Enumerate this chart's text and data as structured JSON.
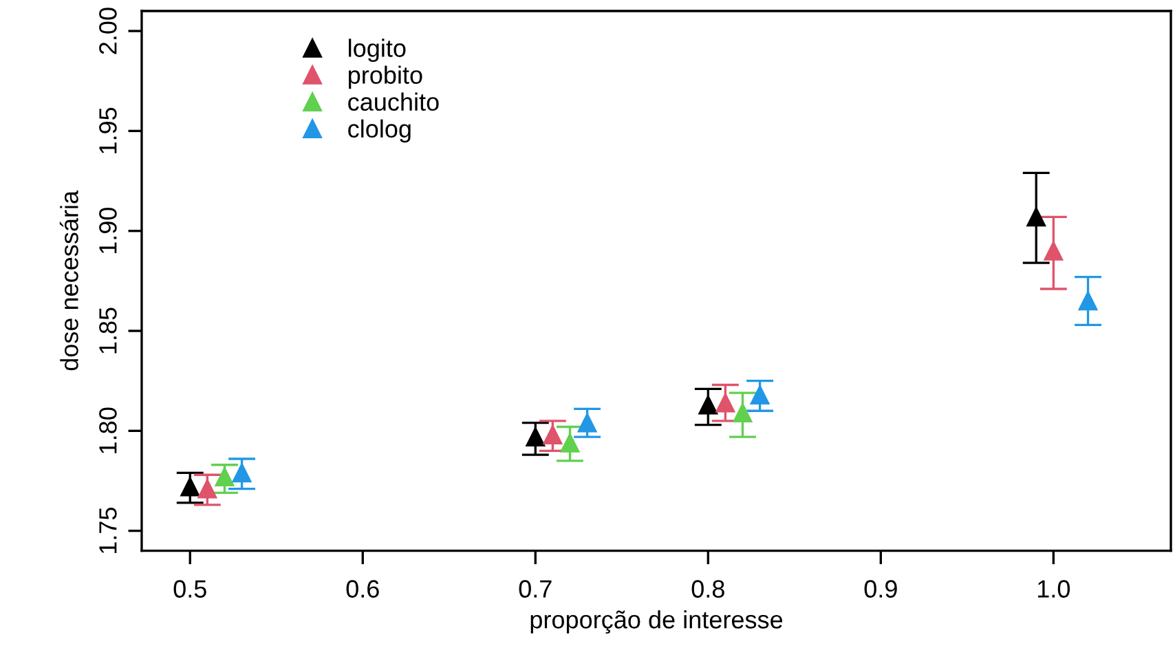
{
  "chart_data": {
    "type": "scatter",
    "xlabel": "proporção de interesse",
    "ylabel": "dose necessária",
    "xlim": [
      0.472,
      1.068
    ],
    "ylim": [
      1.74,
      2.01
    ],
    "xticks": [
      0.5,
      0.6,
      0.7,
      0.8,
      0.9,
      {
        "value": 1.0,
        "label": "1.0"
      }
    ],
    "yticks": [
      {
        "value": 1.75,
        "label": "1.75"
      },
      {
        "value": 1.8,
        "label": "1.80"
      },
      {
        "value": 1.85,
        "label": "1.85"
      },
      {
        "value": 1.9,
        "label": "1.90"
      },
      {
        "value": 1.95,
        "label": "1.95"
      },
      {
        "value": 2.0,
        "label": "2.00"
      }
    ],
    "marker": "triangle",
    "grid": false,
    "legend": "top left",
    "series": [
      {
        "name": "logito",
        "color": "#000000",
        "x": [
          0.5,
          0.7,
          0.8,
          0.99
        ],
        "values": [
          1.772,
          1.797,
          1.813,
          1.907
        ],
        "errors": [
          [
            1.764,
            1.779
          ],
          [
            1.788,
            1.804
          ],
          [
            1.803,
            1.821
          ],
          [
            1.884,
            1.929
          ]
        ]
      },
      {
        "name": "probito",
        "color": "#df536b",
        "x": [
          0.51,
          0.71,
          0.81,
          1.0
        ],
        "values": [
          1.771,
          1.798,
          1.814,
          1.89
        ],
        "errors": [
          [
            1.763,
            1.778
          ],
          [
            1.79,
            1.805
          ],
          [
            1.805,
            1.823
          ],
          [
            1.871,
            1.907
          ]
        ]
      },
      {
        "name": "cauchito",
        "color": "#61d04f",
        "x": [
          0.52,
          0.72,
          0.82
        ],
        "values": [
          1.777,
          1.794,
          1.809
        ],
        "errors": [
          [
            1.769,
            1.783
          ],
          [
            1.785,
            1.802
          ],
          [
            1.797,
            1.819
          ]
        ]
      },
      {
        "name": "clolog",
        "color": "#2297e6",
        "x": [
          0.53,
          0.73,
          0.83,
          1.02
        ],
        "values": [
          1.779,
          1.804,
          1.818,
          1.865
        ],
        "errors": [
          [
            1.771,
            1.786
          ],
          [
            1.797,
            1.811
          ],
          [
            1.81,
            1.825
          ],
          [
            1.853,
            1.877
          ]
        ]
      }
    ]
  }
}
